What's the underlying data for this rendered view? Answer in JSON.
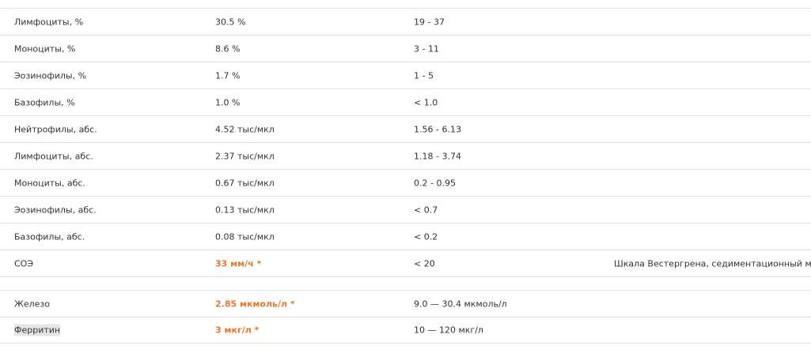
{
  "rows": [
    {
      "name": "Лимфоциты, %",
      "value": "30.5 %",
      "ref": "19 - 37",
      "note": ""
    },
    {
      "name": "Моноциты, %",
      "value": "8.6 %",
      "ref": "3 - 11",
      "note": ""
    },
    {
      "name": "Эозинофилы, %",
      "value": "1.7 %",
      "ref": "1 - 5",
      "note": ""
    },
    {
      "name": "Базофилы, %",
      "value": "1.0 %",
      "ref": "< 1.0",
      "note": ""
    },
    {
      "name": "Нейтрофилы, абс.",
      "value": "4.52 тыс/мкл",
      "ref": "1.56 - 6.13",
      "note": ""
    },
    {
      "name": "Лимфоциты, абс.",
      "value": "2.37 тыс/мкл",
      "ref": "1.18 - 3.74",
      "note": ""
    },
    {
      "name": "Моноциты, абс.",
      "value": "0.67 тыс/мкл",
      "ref": "0.2 - 0.95",
      "note": ""
    },
    {
      "name": "Эозинофилы, абс.",
      "value": "0.13 тыс/мкл",
      "ref": "< 0.7",
      "note": ""
    },
    {
      "name": "Базофилы, абс.",
      "value": "0.08 тыс/мкл",
      "ref": "< 0.2",
      "note": ""
    },
    {
      "name": "СОЭ",
      "value": "33 мм/ч *",
      "ref": "< 20",
      "note": "Шкала Вестергрена, седиментационный метод"
    },
    {
      "name": "Железо",
      "value": "2.85 мкмоль/л *",
      "ref": "9.0 — 30.4 мкмоль/л",
      "note": ""
    },
    {
      "name": "Ферритин",
      "value": "3 мкг/л *",
      "ref": "10 — 120 мкг/л",
      "note": ""
    }
  ],
  "colors": {
    "flagged": "#e8792f",
    "divider": "#e4e4e4",
    "highlight": "#e6e6e6"
  }
}
